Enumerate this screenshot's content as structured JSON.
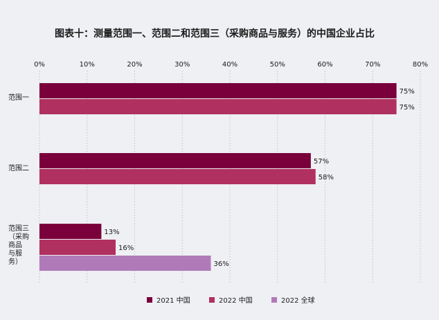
{
  "chart_data": {
    "type": "bar",
    "orientation": "horizontal",
    "title": "图表十：测量范围一、范围二和范围三（采购商品与服务）的中国企业占比",
    "categories": [
      [
        "范围一"
      ],
      [
        "范围二"
      ],
      [
        "范围三",
        "（采购",
        "商品",
        "与服",
        "务）"
      ]
    ],
    "xlim": [
      0,
      80
    ],
    "x_ticks": [
      "0%",
      "10%",
      "20%",
      "30%",
      "40%",
      "50%",
      "60%",
      "70%",
      "80%"
    ],
    "x_tick_values": [
      0,
      10,
      20,
      30,
      40,
      50,
      60,
      70,
      80
    ],
    "axis_position": "top",
    "grid": true,
    "legend_position": "bottom",
    "series": [
      {
        "name": "2021 中国",
        "color": "#7a003c",
        "values": [
          75,
          57,
          13
        ],
        "labels": [
          "75%",
          "57%",
          "13%"
        ]
      },
      {
        "name": "2022 中国",
        "color": "#b03060",
        "values": [
          75,
          58,
          16
        ],
        "labels": [
          "75%",
          "58%",
          "16%"
        ]
      },
      {
        "name": "2022 全球",
        "color": "#b07ab8",
        "values": [
          null,
          null,
          36
        ],
        "labels": [
          null,
          null,
          "36%"
        ]
      }
    ]
  }
}
